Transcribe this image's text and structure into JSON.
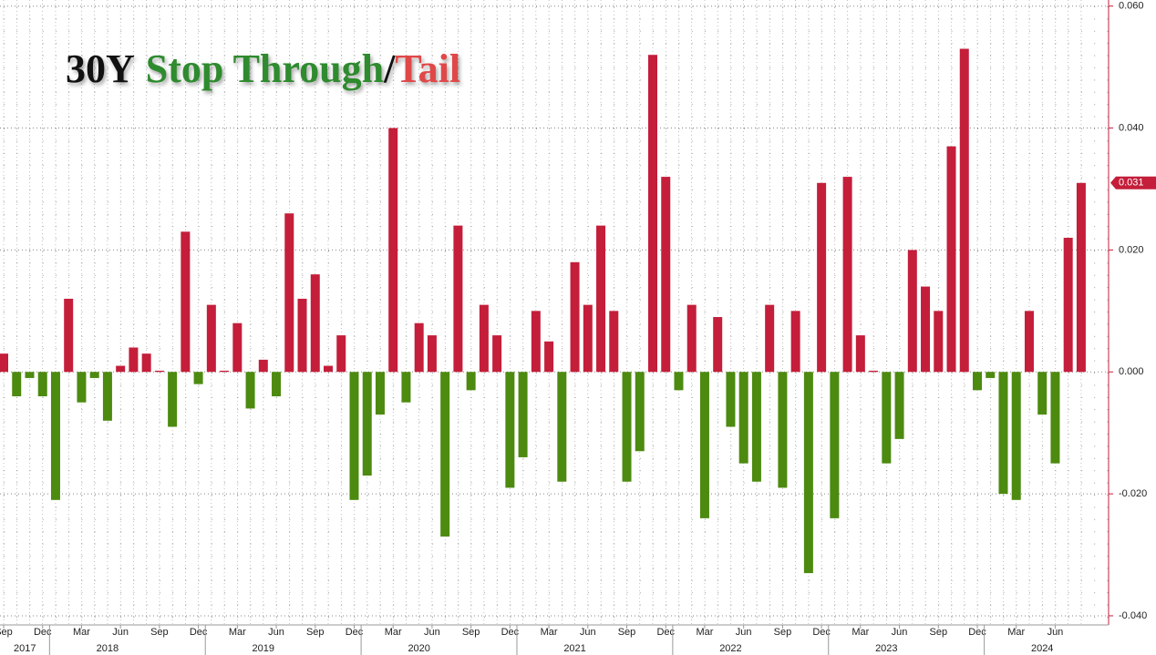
{
  "chart_data": {
    "type": "bar",
    "title_parts": [
      {
        "text": "30Y",
        "color": "#111111"
      },
      {
        "text": "Stop Through",
        "color": "#2e8b2e"
      },
      {
        "text": "/",
        "color": "#111111"
      },
      {
        "text": "Tail",
        "color": "#e04848"
      }
    ],
    "categories": [
      "Sep",
      null,
      null,
      "Dec",
      null,
      null,
      "Mar",
      null,
      null,
      "Jun",
      null,
      null,
      "Sep",
      null,
      null,
      "Dec",
      null,
      null,
      "Mar",
      null,
      null,
      "Jun",
      null,
      null,
      "Sep",
      null,
      null,
      "Dec",
      null,
      null,
      "Mar",
      null,
      null,
      "Jun",
      null,
      null,
      "Sep",
      null,
      null,
      "Dec",
      null,
      null,
      "Mar",
      null,
      null,
      "Jun",
      null,
      null,
      "Sep",
      null,
      null,
      "Dec",
      null,
      null,
      "Mar",
      null,
      null,
      "Jun",
      null,
      null,
      "Sep",
      null,
      null,
      "Dec",
      null,
      null,
      "Mar",
      null,
      null,
      "Jun",
      null,
      null,
      "Sep",
      null,
      null,
      "Dec",
      null,
      null,
      "Mar",
      null,
      null,
      "Jun",
      null,
      null
    ],
    "year_categories": [
      null,
      "2017",
      null,
      null,
      null,
      null,
      null,
      null,
      "2018",
      null,
      null,
      null,
      null,
      null,
      null,
      null,
      null,
      null,
      null,
      null,
      "2019",
      null,
      null,
      null,
      null,
      null,
      null,
      null,
      null,
      null,
      null,
      null,
      "2020",
      null,
      null,
      null,
      null,
      null,
      null,
      null,
      null,
      null,
      null,
      null,
      "2021",
      null,
      null,
      null,
      null,
      null,
      null,
      null,
      null,
      null,
      null,
      null,
      "2022",
      null,
      null,
      null,
      null,
      null,
      null,
      null,
      null,
      null,
      null,
      null,
      "2023",
      null,
      null,
      null,
      null,
      null,
      null,
      null,
      null,
      null,
      null,
      null,
      "2024",
      null,
      null,
      null
    ],
    "values": [
      0.003,
      -0.004,
      -0.001,
      -0.004,
      -0.021,
      0.012,
      -0.005,
      -0.001,
      -0.008,
      0.001,
      0.004,
      0.003,
      0.0002,
      -0.009,
      0.023,
      -0.002,
      0.011,
      0.0002,
      0.008,
      -0.006,
      0.002,
      -0.004,
      0.026,
      0.012,
      0.016,
      0.001,
      0.006,
      -0.021,
      -0.017,
      -0.007,
      0.04,
      -0.005,
      0.008,
      0.006,
      -0.027,
      0.024,
      -0.003,
      0.011,
      0.006,
      -0.019,
      -0.014,
      0.01,
      0.005,
      -0.018,
      0.018,
      0.011,
      0.024,
      0.01,
      -0.018,
      -0.013,
      0.052,
      0.032,
      -0.003,
      0.011,
      -0.024,
      0.009,
      -0.009,
      -0.015,
      -0.018,
      0.011,
      -0.019,
      0.01,
      -0.033,
      0.031,
      -0.024,
      0.032,
      0.006,
      0.0002,
      -0.015,
      -0.011,
      0.02,
      0.014,
      0.01,
      0.037,
      0.053,
      -0.003,
      -0.001,
      -0.02,
      -0.021,
      0.01,
      -0.007,
      -0.015,
      0.022,
      0.031
    ],
    "value_labels": [
      null,
      null,
      null,
      null,
      null,
      null,
      null,
      null,
      null,
      null,
      null,
      null,
      null,
      null,
      null,
      null,
      null,
      null,
      null,
      null,
      null,
      null,
      null,
      null,
      null,
      null,
      null,
      null,
      null,
      null,
      null,
      null,
      null,
      null,
      null,
      null,
      null,
      null,
      null,
      null,
      null,
      null,
      null,
      null,
      null,
      null,
      null,
      null,
      null,
      null,
      null,
      null,
      null,
      null,
      null,
      null,
      null,
      null,
      null,
      null,
      null,
      null,
      null,
      null,
      null,
      null,
      null,
      null,
      null,
      null,
      null,
      null,
      null,
      null,
      null,
      null,
      null,
      null,
      null,
      null,
      null,
      null,
      null,
      "0.031"
    ],
    "positive_color": "#c41e3a",
    "negative_color": "#4d8a10",
    "ylim": [
      -0.0415,
      0.061
    ],
    "yticks": [
      {
        "value": -0.04,
        "label": "-0.040"
      },
      {
        "value": -0.02,
        "label": "-0.020"
      },
      {
        "value": 0,
        "label": "0.000"
      },
      {
        "value": 0.02,
        "label": "0.020"
      },
      {
        "value": 0.04,
        "label": "0.040"
      },
      {
        "value": 0.06,
        "label": "0.060"
      }
    ],
    "grid": true
  }
}
